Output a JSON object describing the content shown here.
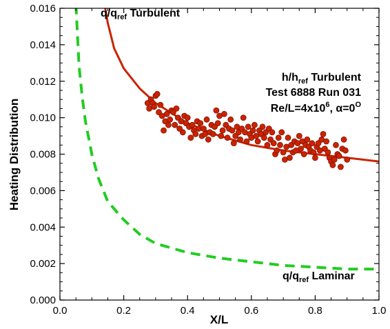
{
  "chart_data": {
    "type": "scatter",
    "xlabel": "X/L",
    "ylabel": "Heating Distribution",
    "xlim": [
      0.0,
      1.0
    ],
    "ylim": [
      0.0,
      0.016
    ],
    "xticks": [
      "0.0",
      "0.2",
      "0.4",
      "0.6",
      "0.8",
      "1.0"
    ],
    "yticks": [
      "0.000",
      "0.002",
      "0.004",
      "0.006",
      "0.008",
      "0.010",
      "0.012",
      "0.014",
      "0.016"
    ],
    "grid": false,
    "colors": {
      "turbulent": "#cc2200",
      "laminar": "#22cc22",
      "points": "#cc2200"
    },
    "series": [
      {
        "name": "q/qref Turbulent",
        "kind": "line",
        "style": "solid",
        "x": [
          0.14,
          0.15,
          0.17,
          0.2,
          0.25,
          0.3,
          0.4,
          0.5,
          0.6,
          0.7,
          0.8,
          0.9,
          1.0
        ],
        "y": [
          0.0162,
          0.0152,
          0.0138,
          0.0127,
          0.0116,
          0.0108,
          0.0097,
          0.009,
          0.0085,
          0.0082,
          0.008,
          0.0078,
          0.0076
        ]
      },
      {
        "name": "q/qref Laminar",
        "kind": "line",
        "style": "dashed",
        "x": [
          0.05,
          0.055,
          0.06,
          0.07,
          0.08,
          0.1,
          0.12,
          0.15,
          0.2,
          0.25,
          0.3,
          0.4,
          0.5,
          0.6,
          0.7,
          0.8,
          0.9,
          1.0
        ],
        "y": [
          0.0162,
          0.0145,
          0.0128,
          0.0111,
          0.0098,
          0.008,
          0.0067,
          0.0054,
          0.0044,
          0.0036,
          0.0031,
          0.0026,
          0.0023,
          0.0021,
          0.0019,
          0.0018,
          0.0017,
          0.0017
        ]
      },
      {
        "name": "h/href Turbulent",
        "kind": "scatter",
        "points": [
          [
            0.275,
            0.0108
          ],
          [
            0.28,
            0.0105
          ],
          [
            0.285,
            0.011
          ],
          [
            0.29,
            0.0108
          ],
          [
            0.295,
            0.0106
          ],
          [
            0.3,
            0.0112
          ],
          [
            0.305,
            0.0113
          ],
          [
            0.31,
            0.0103
          ],
          [
            0.315,
            0.0107
          ],
          [
            0.32,
            0.0101
          ],
          [
            0.325,
            0.0093
          ],
          [
            0.33,
            0.0098
          ],
          [
            0.335,
            0.0102
          ],
          [
            0.34,
            0.0096
          ],
          [
            0.345,
            0.0099
          ],
          [
            0.35,
            0.0104
          ],
          [
            0.355,
            0.0103
          ],
          [
            0.36,
            0.0096
          ],
          [
            0.365,
            0.0105
          ],
          [
            0.37,
            0.01
          ],
          [
            0.375,
            0.0094
          ],
          [
            0.38,
            0.0098
          ],
          [
            0.385,
            0.0092
          ],
          [
            0.39,
            0.0101
          ],
          [
            0.395,
            0.0097
          ],
          [
            0.4,
            0.01
          ],
          [
            0.405,
            0.0095
          ],
          [
            0.41,
            0.0089
          ],
          [
            0.415,
            0.0096
          ],
          [
            0.42,
            0.0093
          ],
          [
            0.425,
            0.0091
          ],
          [
            0.43,
            0.0098
          ],
          [
            0.435,
            0.0094
          ],
          [
            0.44,
            0.0097
          ],
          [
            0.445,
            0.009
          ],
          [
            0.45,
            0.0094
          ],
          [
            0.455,
            0.0091
          ],
          [
            0.46,
            0.0099
          ],
          [
            0.465,
            0.0088
          ],
          [
            0.47,
            0.0092
          ],
          [
            0.475,
            0.0096
          ],
          [
            0.48,
            0.0091
          ],
          [
            0.485,
            0.0095
          ],
          [
            0.49,
            0.0104
          ],
          [
            0.495,
            0.0097
          ],
          [
            0.5,
            0.0101
          ],
          [
            0.505,
            0.009
          ],
          [
            0.51,
            0.0093
          ],
          [
            0.515,
            0.0102
          ],
          [
            0.52,
            0.0096
          ],
          [
            0.525,
            0.0089
          ],
          [
            0.53,
            0.0094
          ],
          [
            0.535,
            0.0099
          ],
          [
            0.54,
            0.0093
          ],
          [
            0.545,
            0.0086
          ],
          [
            0.55,
            0.009
          ],
          [
            0.555,
            0.0095
          ],
          [
            0.56,
            0.0092
          ],
          [
            0.565,
            0.0088
          ],
          [
            0.57,
            0.0094
          ],
          [
            0.575,
            0.01
          ],
          [
            0.58,
            0.0092
          ],
          [
            0.585,
            0.0087
          ],
          [
            0.59,
            0.0095
          ],
          [
            0.595,
            0.0091
          ],
          [
            0.6,
            0.0089
          ],
          [
            0.605,
            0.0093
          ],
          [
            0.61,
            0.0096
          ],
          [
            0.615,
            0.009
          ],
          [
            0.62,
            0.0087
          ],
          [
            0.625,
            0.0093
          ],
          [
            0.63,
            0.0091
          ],
          [
            0.635,
            0.0095
          ],
          [
            0.64,
            0.0089
          ],
          [
            0.645,
            0.0092
          ],
          [
            0.65,
            0.0085
          ],
          [
            0.655,
            0.0094
          ],
          [
            0.66,
            0.0088
          ],
          [
            0.665,
            0.0092
          ],
          [
            0.67,
            0.0086
          ],
          [
            0.675,
            0.008
          ],
          [
            0.68,
            0.0082
          ],
          [
            0.685,
            0.0089
          ],
          [
            0.69,
            0.0085
          ],
          [
            0.695,
            0.0092
          ],
          [
            0.7,
            0.0081
          ],
          [
            0.705,
            0.0077
          ],
          [
            0.71,
            0.0084
          ],
          [
            0.715,
            0.0089
          ],
          [
            0.72,
            0.0078
          ],
          [
            0.725,
            0.0085
          ],
          [
            0.73,
            0.0081
          ],
          [
            0.735,
            0.0087
          ],
          [
            0.74,
            0.0082
          ],
          [
            0.745,
            0.0086
          ],
          [
            0.75,
            0.009
          ],
          [
            0.755,
            0.0083
          ],
          [
            0.76,
            0.0087
          ],
          [
            0.765,
            0.008
          ],
          [
            0.77,
            0.0085
          ],
          [
            0.775,
            0.0088
          ],
          [
            0.78,
            0.0084
          ],
          [
            0.785,
            0.0082
          ],
          [
            0.79,
            0.0086
          ],
          [
            0.795,
            0.0081
          ],
          [
            0.8,
            0.0078
          ],
          [
            0.805,
            0.0084
          ],
          [
            0.81,
            0.0086
          ],
          [
            0.815,
            0.0082
          ],
          [
            0.82,
            0.0088
          ],
          [
            0.825,
            0.0091
          ],
          [
            0.83,
            0.0083
          ],
          [
            0.835,
            0.0087
          ],
          [
            0.84,
            0.0081
          ],
          [
            0.845,
            0.0078
          ],
          [
            0.85,
            0.0076
          ],
          [
            0.855,
            0.0074
          ],
          [
            0.86,
            0.0077
          ],
          [
            0.865,
            0.0085
          ],
          [
            0.87,
            0.008
          ],
          [
            0.875,
            0.0079
          ],
          [
            0.88,
            0.0073
          ],
          [
            0.885,
            0.0083
          ],
          [
            0.89,
            0.0088
          ],
          [
            0.895,
            0.0082
          ],
          [
            0.9,
            0.0077
          ]
        ]
      }
    ],
    "annotations": {
      "turb_label": {
        "main": "q/q",
        "sub": "ref",
        "rest": " Turbulent"
      },
      "lam_label": {
        "main": "q/q",
        "sub": "ref",
        "rest": " Laminar"
      },
      "data_label": {
        "line1_main": "h/h",
        "line1_sub": "ref",
        "line1_rest": " Turbulent",
        "line2": "Test 6888 Run 031",
        "line3_main": "Re/L=4x10",
        "line3_sup": "6",
        "line3_mid": ", α=0",
        "line3_sup2": "O"
      }
    }
  }
}
